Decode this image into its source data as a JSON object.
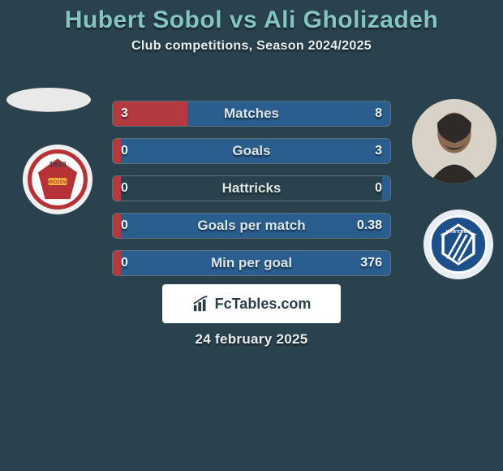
{
  "title": {
    "text": "Hubert Sobol vs Ali Gholizadeh",
    "color": "#84c5c1",
    "fontsize": 30
  },
  "subtitle": {
    "text": "Club competitions, Season 2024/2025",
    "fontsize": 16
  },
  "date": {
    "text": "24 february 2025",
    "fontsize": 17
  },
  "watermark": {
    "text": "FcTables.com",
    "fontsize": 18
  },
  "colors": {
    "background": "#2a424d",
    "barLabel": "#dbe6e7",
    "valueText": "#eef4f5"
  },
  "bars": {
    "labelFontsize": 17,
    "valueFontsize": 16,
    "height": 32,
    "gap": 14,
    "leftColor": "#b33a3f",
    "rightColor": "#2a5e8f",
    "trackColor": "#2a424d",
    "items": [
      {
        "label": "Matches",
        "leftVal": "3",
        "rightVal": "8",
        "leftPct": 27,
        "rightPct": 73
      },
      {
        "label": "Goals",
        "leftVal": "0",
        "rightVal": "3",
        "leftPct": 3,
        "rightPct": 97
      },
      {
        "label": "Hattricks",
        "leftVal": "0",
        "rightVal": "0",
        "leftPct": 3,
        "rightPct": 3
      },
      {
        "label": "Goals per match",
        "leftVal": "0",
        "rightVal": "0.38",
        "leftPct": 3,
        "rightPct": 97
      },
      {
        "label": "Min per goal",
        "leftVal": "0",
        "rightVal": "376",
        "leftPct": 3,
        "rightPct": 97
      }
    ]
  },
  "players": {
    "left": {
      "name": "Hubert Sobol",
      "avatar_bg": "#e9e9e9"
    },
    "right": {
      "name": "Ali Gholizadeh",
      "avatar_bg": "#d8d2c8"
    }
  },
  "clubs": {
    "left": {
      "name": "Widzew Łódź",
      "badge_primary": "#b63237",
      "badge_secondary": "#ffffff",
      "badge_accent": "#f2c23a"
    },
    "right": {
      "name": "Lech Poznań",
      "badge_primary": "#1d4f8b",
      "badge_secondary": "#ffffff"
    }
  }
}
